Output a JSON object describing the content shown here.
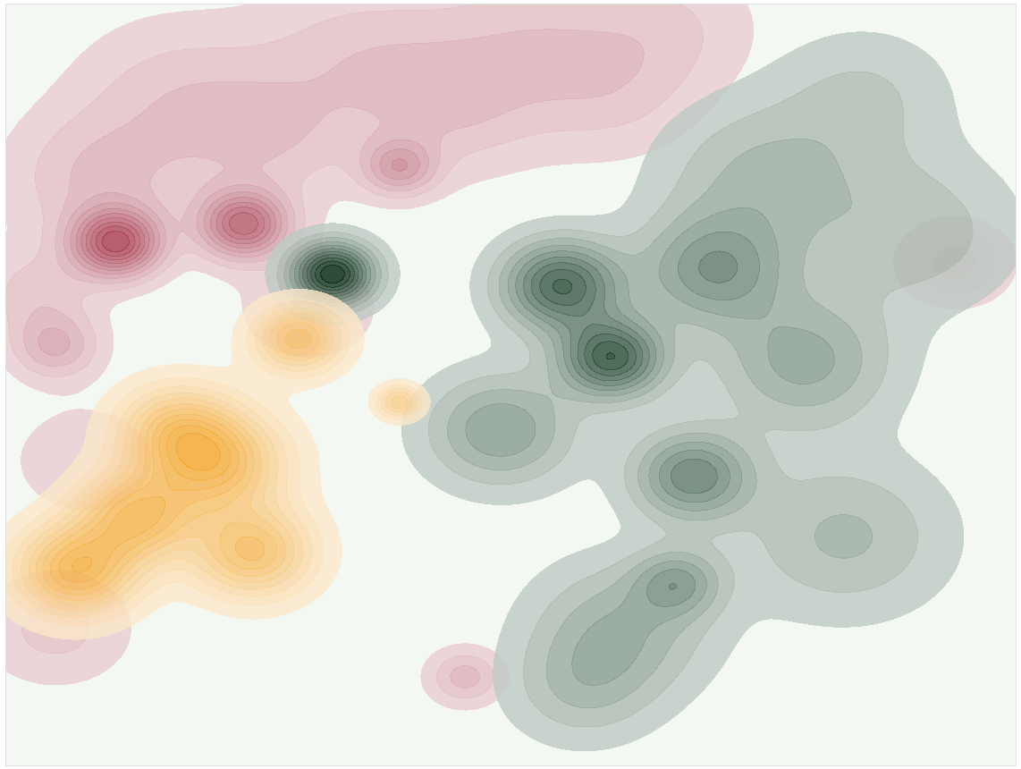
{
  "chart_data": {
    "type": "contour",
    "xlim": [
      0,
      100
    ],
    "ylim": [
      0,
      100
    ],
    "xticks": [],
    "yticks": [],
    "tick_labels": false,
    "grid": false,
    "series": [
      {
        "color": "#a8394f",
        "x": [
          11,
          23.6,
          39,
          5,
          94,
          45.5,
          17,
          35,
          52,
          66,
          9,
          26,
          5,
          44,
          30,
          3,
          8,
          60
        ],
        "y": [
          68.6,
          71,
          78.5,
          55,
          66,
          11.6,
          88,
          93,
          95,
          97,
          77,
          82,
          18,
          86,
          60,
          62,
          40,
          88
        ],
        "weights": [
          1.0,
          0.85,
          0.45,
          0.35,
          0.3,
          0.3,
          0.2,
          0.2,
          0.2,
          0.15,
          0.25,
          0.2,
          0.2,
          0.2,
          0.15,
          0.2,
          0.15,
          0.15
        ],
        "spread": [
          3,
          3,
          2.5,
          3,
          3.5,
          2.5,
          7,
          7,
          7,
          6,
          6,
          6,
          5,
          6,
          5,
          4,
          5,
          6
        ]
      },
      {
        "color": "#002a12",
        "x": [
          32.4,
          55,
          60,
          68,
          66.5,
          79,
          75,
          61,
          83,
          49,
          70,
          90,
          57,
          85
        ],
        "y": [
          64.5,
          63,
          53.5,
          38,
          24,
          53,
          77,
          18,
          30,
          44,
          65,
          70,
          10,
          88
        ],
        "weights": [
          1.0,
          0.75,
          0.8,
          0.55,
          0.35,
          0.35,
          0.25,
          0.3,
          0.25,
          0.4,
          0.45,
          0.2,
          0.2,
          0.15
        ],
        "spread": [
          2.8,
          4,
          3.5,
          4,
          3,
          6,
          7,
          6,
          7,
          5,
          5,
          7,
          5,
          6
        ]
      },
      {
        "color": "#f5a52a",
        "x": [
          7,
          21,
          29,
          39,
          24.5,
          13,
          17
        ],
        "y": [
          25.6,
          39.5,
          56,
          47.7,
          28,
          32.6,
          44
        ],
        "weights": [
          1.0,
          0.9,
          0.8,
          0.6,
          0.85,
          0.9,
          0.7
        ],
        "spread": [
          4,
          4.5,
          3,
          1.5,
          4,
          4,
          4
        ]
      }
    ]
  }
}
